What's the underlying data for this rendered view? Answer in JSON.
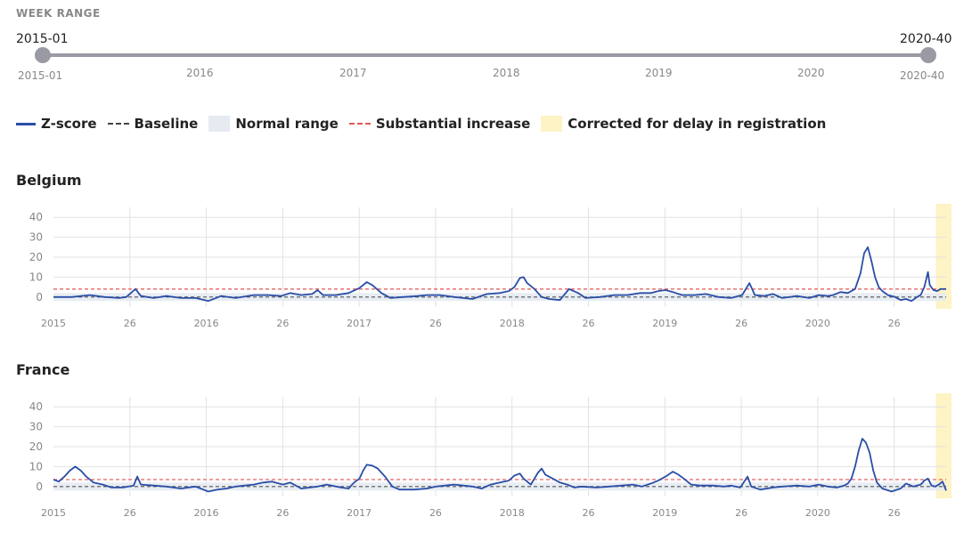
{
  "week_range": {
    "label": "WEEK RANGE",
    "start_value": "2015-01",
    "end_value": "2020-40",
    "start_tick": "2015-01",
    "end_tick": "2020-40",
    "year_ticks": [
      "2016",
      "2017",
      "2018",
      "2019",
      "2020"
    ]
  },
  "legend": {
    "zscore": "Z-score",
    "baseline": "Baseline",
    "normal_range": "Normal range",
    "substantial_increase": "Substantial increase",
    "corrected": "Corrected for delay in registration"
  },
  "colors": {
    "series": "#2a4ea6",
    "baseline": "#555555",
    "threshold": "#e25555",
    "normal_range": "#e6ebf2",
    "corrected": "#fdf3c4",
    "grid": "#e2e2e2",
    "slider": "#9a9aa4"
  },
  "chart_data": [
    {
      "type": "line",
      "title": "Belgium",
      "xlabel": "",
      "ylabel": "",
      "x_ticks": [
        "2015",
        "26",
        "2016",
        "26",
        "2017",
        "26",
        "2018",
        "26",
        "2019",
        "26",
        "2020",
        "26"
      ],
      "y_ticks": [
        0,
        10,
        20,
        30,
        40
      ],
      "ylim": [
        -5,
        45
      ],
      "baseline": 0,
      "substantial_increase": 4,
      "normal_range": [
        -2,
        2
      ],
      "corrected_weeks": "2020-37 to 2020-40",
      "x_unit": "week index from 2015-01",
      "series": [
        {
          "points": [
            [
              0,
              0
            ],
            [
              10,
              0
            ],
            [
              20,
              1
            ],
            [
              28,
              0
            ],
            [
              36,
              -0.5
            ],
            [
              40,
              0
            ],
            [
              45,
              4
            ],
            [
              48,
              0.5
            ],
            [
              55,
              -0.5
            ],
            [
              62,
              0.5
            ],
            [
              70,
              -0.5
            ],
            [
              78,
              -0.5
            ],
            [
              85,
              -2
            ],
            [
              92,
              0.5
            ],
            [
              100,
              -0.5
            ],
            [
              110,
              1
            ],
            [
              118,
              1
            ],
            [
              125,
              0.5
            ],
            [
              130,
              2
            ],
            [
              136,
              1
            ],
            [
              142,
              1.5
            ],
            [
              145,
              3.5
            ],
            [
              148,
              1
            ],
            [
              155,
              1
            ],
            [
              162,
              2
            ],
            [
              168,
              4.5
            ],
            [
              172,
              7.5
            ],
            [
              175,
              6
            ],
            [
              180,
              2
            ],
            [
              185,
              -0.5
            ],
            [
              192,
              0
            ],
            [
              200,
              0.5
            ],
            [
              205,
              1
            ],
            [
              212,
              1
            ],
            [
              220,
              0
            ],
            [
              230,
              -1
            ],
            [
              238,
              1.5
            ],
            [
              245,
              2
            ],
            [
              250,
              3
            ],
            [
              253,
              5
            ],
            [
              256,
              9.5
            ],
            [
              258,
              10
            ],
            [
              260,
              7
            ],
            [
              264,
              4
            ],
            [
              268,
              0
            ],
            [
              272,
              -1
            ],
            [
              278,
              -1.5
            ],
            [
              283,
              4
            ],
            [
              288,
              2
            ],
            [
              292,
              -0.5
            ],
            [
              300,
              0
            ],
            [
              308,
              1
            ],
            [
              315,
              1
            ],
            [
              322,
              2
            ],
            [
              328,
              2
            ],
            [
              332,
              3
            ],
            [
              336,
              3.5
            ],
            [
              340,
              2.5
            ],
            [
              345,
              1
            ],
            [
              352,
              1
            ],
            [
              358,
              1.5
            ],
            [
              365,
              0
            ],
            [
              372,
              -0.5
            ],
            [
              378,
              1
            ],
            [
              382,
              7
            ],
            [
              385,
              1
            ],
            [
              390,
              0.5
            ],
            [
              395,
              1.5
            ],
            [
              400,
              -0.5
            ],
            [
              408,
              0.5
            ],
            [
              415,
              -0.5
            ],
            [
              420,
              1
            ],
            [
              425,
              0.5
            ],
            [
              428,
              1
            ],
            [
              432,
              2.5
            ],
            [
              436,
              2
            ],
            [
              440,
              4
            ],
            [
              443,
              12
            ],
            [
              445,
              22
            ],
            [
              447,
              25
            ],
            [
              449,
              18
            ],
            [
              451,
              10
            ],
            [
              453,
              5
            ],
            [
              455,
              3
            ],
            [
              458,
              1
            ],
            [
              462,
              0
            ],
            [
              465,
              -1.5
            ],
            [
              468,
              -1
            ],
            [
              471,
              -2
            ],
            [
              474,
              0
            ],
            [
              476,
              1
            ],
            [
              478,
              5
            ],
            [
              480,
              12.5
            ],
            [
              481,
              6
            ],
            [
              483,
              3.5
            ],
            [
              485,
              3
            ],
            [
              487,
              4
            ],
            [
              490,
              4
            ]
          ]
        }
      ]
    },
    {
      "type": "line",
      "title": "France",
      "xlabel": "",
      "ylabel": "",
      "x_ticks": [
        "2015",
        "26",
        "2016",
        "26",
        "2017",
        "26",
        "2018",
        "26",
        "2019",
        "26",
        "2020",
        "26"
      ],
      "y_ticks": [
        0,
        10,
        20,
        30,
        40
      ],
      "ylim": [
        -5,
        45
      ],
      "baseline": 0,
      "substantial_increase": 3.5,
      "normal_range": [
        -2,
        2
      ],
      "corrected_weeks": "2020-37 to 2020-40",
      "x_unit": "week index from 2015-01",
      "series": [
        {
          "points": [
            [
              0,
              3.5
            ],
            [
              3,
              2.5
            ],
            [
              6,
              5
            ],
            [
              9,
              8
            ],
            [
              12,
              10
            ],
            [
              15,
              8
            ],
            [
              18,
              5
            ],
            [
              22,
              2
            ],
            [
              27,
              1
            ],
            [
              32,
              -0.5
            ],
            [
              38,
              -0.5
            ],
            [
              44,
              0.5
            ],
            [
              46,
              5
            ],
            [
              48,
              1
            ],
            [
              55,
              0.5
            ],
            [
              62,
              0
            ],
            [
              70,
              -1
            ],
            [
              78,
              0
            ],
            [
              85,
              -2.5
            ],
            [
              90,
              -1.5
            ],
            [
              95,
              -1
            ],
            [
              100,
              0
            ],
            [
              105,
              0.5
            ],
            [
              110,
              1
            ],
            [
              115,
              2
            ],
            [
              120,
              2.5
            ],
            [
              126,
              1
            ],
            [
              130,
              2
            ],
            [
              136,
              -1
            ],
            [
              145,
              0
            ],
            [
              150,
              1
            ],
            [
              158,
              -0.5
            ],
            [
              162,
              -1
            ],
            [
              165,
              2
            ],
            [
              168,
              4
            ],
            [
              170,
              8
            ],
            [
              172,
              11
            ],
            [
              175,
              10.5
            ],
            [
              178,
              9
            ],
            [
              182,
              5
            ],
            [
              186,
              0
            ],
            [
              190,
              -1.5
            ],
            [
              198,
              -1.5
            ],
            [
              205,
              -1
            ],
            [
              210,
              0
            ],
            [
              215,
              0.5
            ],
            [
              220,
              1
            ],
            [
              225,
              0.5
            ],
            [
              230,
              0
            ],
            [
              235,
              -1
            ],
            [
              240,
              1
            ],
            [
              245,
              2
            ],
            [
              250,
              3
            ],
            [
              253,
              5.5
            ],
            [
              256,
              6.5
            ],
            [
              258,
              4
            ],
            [
              262,
              1
            ],
            [
              266,
              7
            ],
            [
              268,
              9
            ],
            [
              270,
              6
            ],
            [
              274,
              4
            ],
            [
              278,
              2
            ],
            [
              282,
              1
            ],
            [
              286,
              -0.5
            ],
            [
              290,
              0
            ],
            [
              298,
              -0.5
            ],
            [
              305,
              0
            ],
            [
              312,
              0.5
            ],
            [
              318,
              1
            ],
            [
              323,
              0
            ],
            [
              328,
              1.5
            ],
            [
              332,
              3
            ],
            [
              336,
              5
            ],
            [
              340,
              7.5
            ],
            [
              343,
              6
            ],
            [
              346,
              4
            ],
            [
              350,
              1
            ],
            [
              355,
              0.5
            ],
            [
              362,
              0.5
            ],
            [
              368,
              0
            ],
            [
              372,
              0.5
            ],
            [
              377,
              -0.5
            ],
            [
              381,
              5
            ],
            [
              383,
              0
            ],
            [
              388,
              -1.5
            ],
            [
              395,
              -0.5
            ],
            [
              400,
              0
            ],
            [
              408,
              0.5
            ],
            [
              415,
              0
            ],
            [
              420,
              1
            ],
            [
              425,
              0
            ],
            [
              430,
              -0.5
            ],
            [
              434,
              0.5
            ],
            [
              436,
              1.5
            ],
            [
              438,
              4
            ],
            [
              440,
              10
            ],
            [
              442,
              18
            ],
            [
              444,
              24
            ],
            [
              446,
              22
            ],
            [
              448,
              17
            ],
            [
              450,
              8
            ],
            [
              452,
              2
            ],
            [
              455,
              -1
            ],
            [
              460,
              -2.5
            ],
            [
              465,
              -1
            ],
            [
              468,
              1.5
            ],
            [
              472,
              0
            ],
            [
              476,
              1
            ],
            [
              478,
              3
            ],
            [
              480,
              4
            ],
            [
              482,
              0.5
            ],
            [
              484,
              0
            ],
            [
              486,
              1
            ],
            [
              488,
              2.5
            ],
            [
              490,
              -2
            ]
          ]
        }
      ]
    }
  ]
}
